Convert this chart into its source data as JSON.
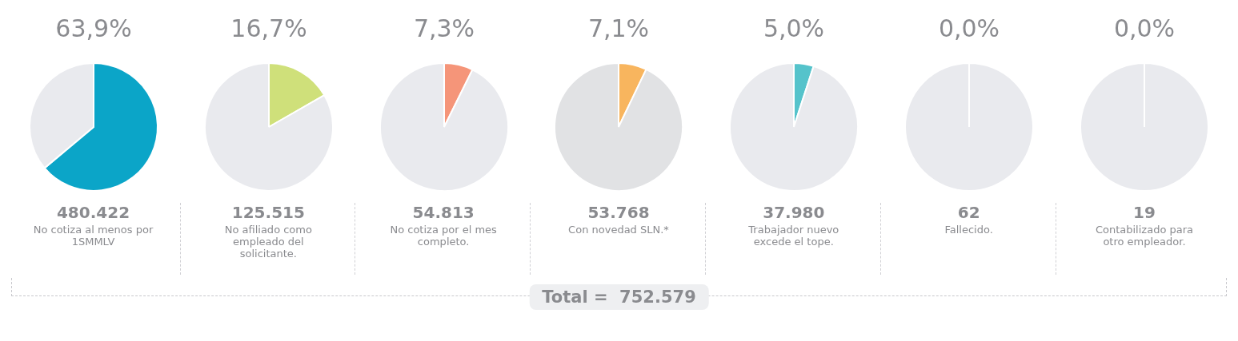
{
  "chart_data": [
    {
      "type": "pie",
      "categories": [
        null,
        null
      ],
      "values": [
        63.9,
        36.1
      ],
      "colors": [
        "#0ba5c8",
        "#e9eaee"
      ],
      "value_labels": [
        "63,9%",
        null
      ],
      "annotations": [
        "480.422",
        "No cotiza al menos por 1SMMLV"
      ]
    },
    {
      "type": "pie",
      "categories": [
        null,
        null
      ],
      "values": [
        16.7,
        83.3
      ],
      "colors": [
        "#cfe07a",
        "#e9eaee"
      ],
      "value_labels": [
        "16,7%",
        null
      ],
      "annotations": [
        "125.515",
        "No afiliado como empleado del solicitante."
      ]
    },
    {
      "type": "pie",
      "categories": [
        null,
        null
      ],
      "values": [
        7.3,
        92.7
      ],
      "colors": [
        "#f59579",
        "#e9eaee"
      ],
      "value_labels": [
        "7,3%",
        null
      ],
      "annotations": [
        "54.813",
        "No cotiza por el mes completo."
      ]
    },
    {
      "type": "pie",
      "categories": [
        null,
        null
      ],
      "values": [
        7.1,
        92.9
      ],
      "colors": [
        "#f8b55e",
        "#e1e2e4"
      ],
      "value_labels": [
        "7,1%",
        null
      ],
      "annotations": [
        "53.768",
        "Con novedad SLN.*"
      ]
    },
    {
      "type": "pie",
      "categories": [
        null,
        null
      ],
      "values": [
        5.0,
        95.0
      ],
      "colors": [
        "#55c3cb",
        "#e9eaee"
      ],
      "value_labels": [
        "5,0%",
        null
      ],
      "annotations": [
        "37.980",
        "Trabajador nuevo excede el tope."
      ]
    },
    {
      "type": "pie",
      "categories": [
        null,
        null
      ],
      "values": [
        0.0,
        100
      ],
      "colors": [
        "#0ba5c8",
        "#e9eaee"
      ],
      "value_labels": [
        "0,0%",
        null
      ],
      "annotations": [
        "62",
        "Fallecido."
      ]
    },
    {
      "type": "pie",
      "categories": [
        null,
        null
      ],
      "values": [
        0.0,
        100
      ],
      "colors": [
        "#0ba5c8",
        "#e9eaee"
      ],
      "value_labels": [
        "0,0%",
        null
      ],
      "annotations": [
        "19",
        "Contabilizado para otro empleador."
      ]
    },
    {
      "type": "other",
      "title": "Total =  752.579"
    }
  ]
}
